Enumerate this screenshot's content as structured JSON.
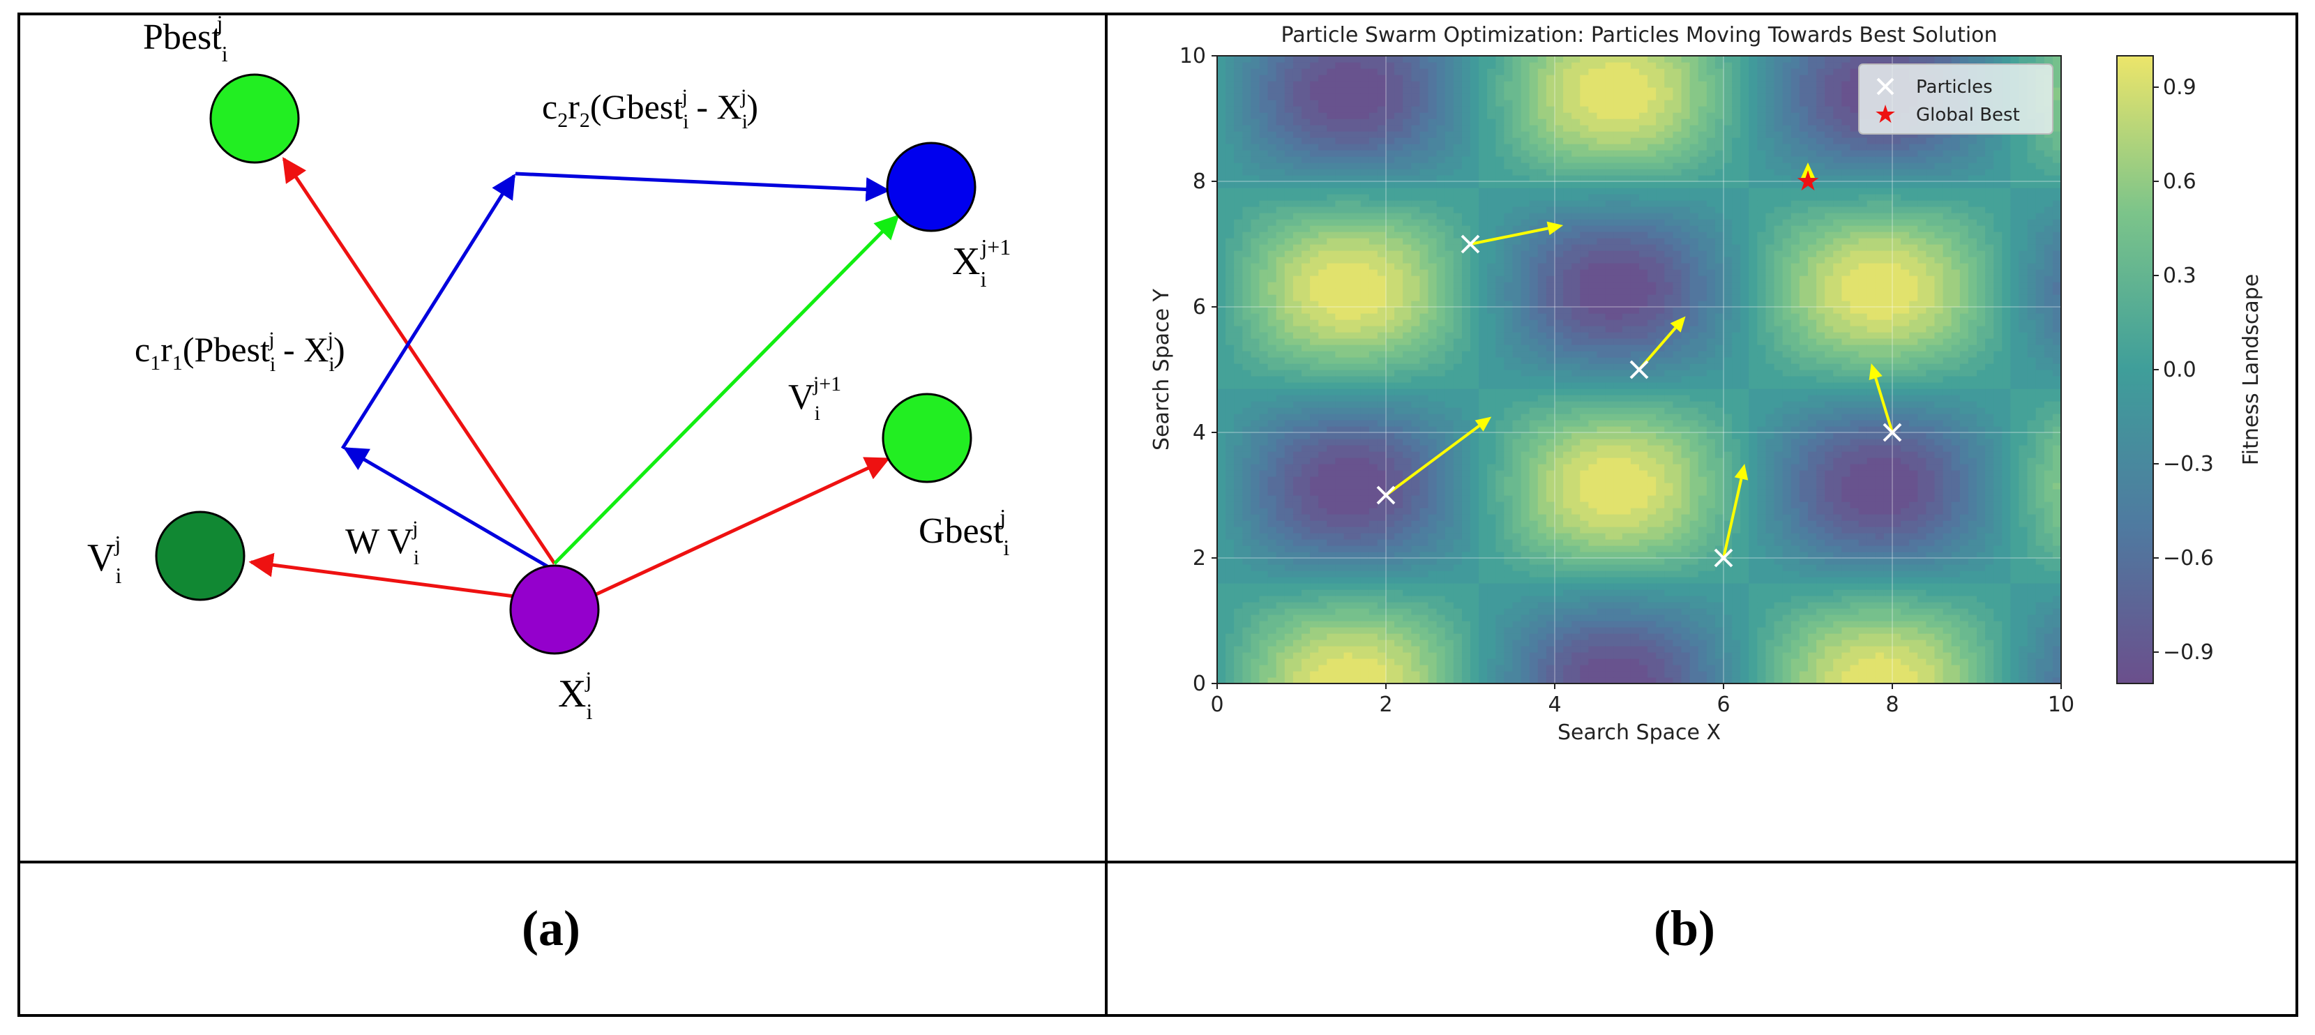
{
  "panel_labels": {
    "a": "(a)",
    "b": "(b)"
  },
  "diagram": {
    "nodes": {
      "pbest": {
        "label": "Pbest",
        "sub": "i",
        "sup": "j",
        "color": "#22ee22"
      },
      "x_next": {
        "label": "X",
        "sub": "i",
        "sup": "j+1",
        "color": "#0000ee"
      },
      "gbest": {
        "label": "Gbest",
        "sub": "i",
        "sup": "j",
        "color": "#22ee22"
      },
      "v_prev": {
        "label": "V",
        "sub": "i",
        "sup": "j",
        "color": "#118833"
      },
      "x_cur": {
        "label": "X",
        "sub": "i",
        "sup": "j",
        "color": "#9400cc"
      }
    },
    "vector_labels": {
      "cognitive": {
        "pre": "c",
        "pre_sub": "1",
        "mid": "r",
        "mid_sub": "1",
        "open": "(Pbest",
        "s1_sub": "i",
        "s1_sup": "j",
        "minus": " - X",
        "s2_sub": "i",
        "s2_sup": "j",
        "close": ")"
      },
      "social": {
        "pre": "c",
        "pre_sub": "2",
        "mid": "r",
        "mid_sub": "2",
        "open": "(Gbest",
        "s1_sub": "i",
        "s1_sup": "j",
        "minus": " - X",
        "s2_sub": "i",
        "s2_sup": "j",
        "close": ")"
      },
      "inertia": {
        "pre": "W V",
        "sub": "i",
        "sup": "j"
      },
      "velocity_new": {
        "pre": "V",
        "sub": "i",
        "sup": "j+1"
      }
    },
    "arrow_colors": {
      "red": "#ee1111",
      "blue": "#0000dd",
      "green": "#11ee11"
    }
  },
  "chart_data": {
    "type": "scatter",
    "title": "Particle Swarm Optimization: Particles Moving Towards Best Solution",
    "xlabel": "Search Space X",
    "ylabel": "Search Space Y",
    "xlim": [
      0,
      10
    ],
    "ylim": [
      0,
      10
    ],
    "xticks": [
      0,
      2,
      4,
      6,
      8,
      10
    ],
    "yticks": [
      0,
      2,
      4,
      6,
      8,
      10
    ],
    "grid": true,
    "background": "contourf of sin(x)*cos(y) fitness landscape",
    "colorbar": {
      "label": "Fitness Landscape",
      "ticks": [
        0.9,
        0.6,
        0.3,
        0.0,
        -0.3,
        -0.6,
        -0.9
      ],
      "tick_labels": [
        "0.9",
        "0.6",
        "0.3",
        "0.0",
        "−0.3",
        "−0.6",
        "−0.9"
      ],
      "range": [
        -1,
        1
      ]
    },
    "legend": {
      "position": "top-right",
      "entries": [
        "Particles",
        "Global Best"
      ]
    },
    "particles": [
      {
        "x": 3,
        "y": 7,
        "vx": 1.1,
        "vy": 0.3
      },
      {
        "x": 5,
        "y": 5,
        "vx": 0.55,
        "vy": 0.85
      },
      {
        "x": 2,
        "y": 3,
        "vx": 1.25,
        "vy": 1.25
      },
      {
        "x": 6,
        "y": 2,
        "vx": 0.25,
        "vy": 1.5
      },
      {
        "x": 8,
        "y": 4,
        "vx": -0.25,
        "vy": 1.1
      }
    ],
    "global_best": {
      "x": 7,
      "y": 8,
      "vx": 0,
      "vy": 0.3
    },
    "colors": {
      "particle": "#ffffff",
      "global_best": "#ee1111",
      "arrow": "#ffff00",
      "grid": "#ffffff"
    }
  }
}
